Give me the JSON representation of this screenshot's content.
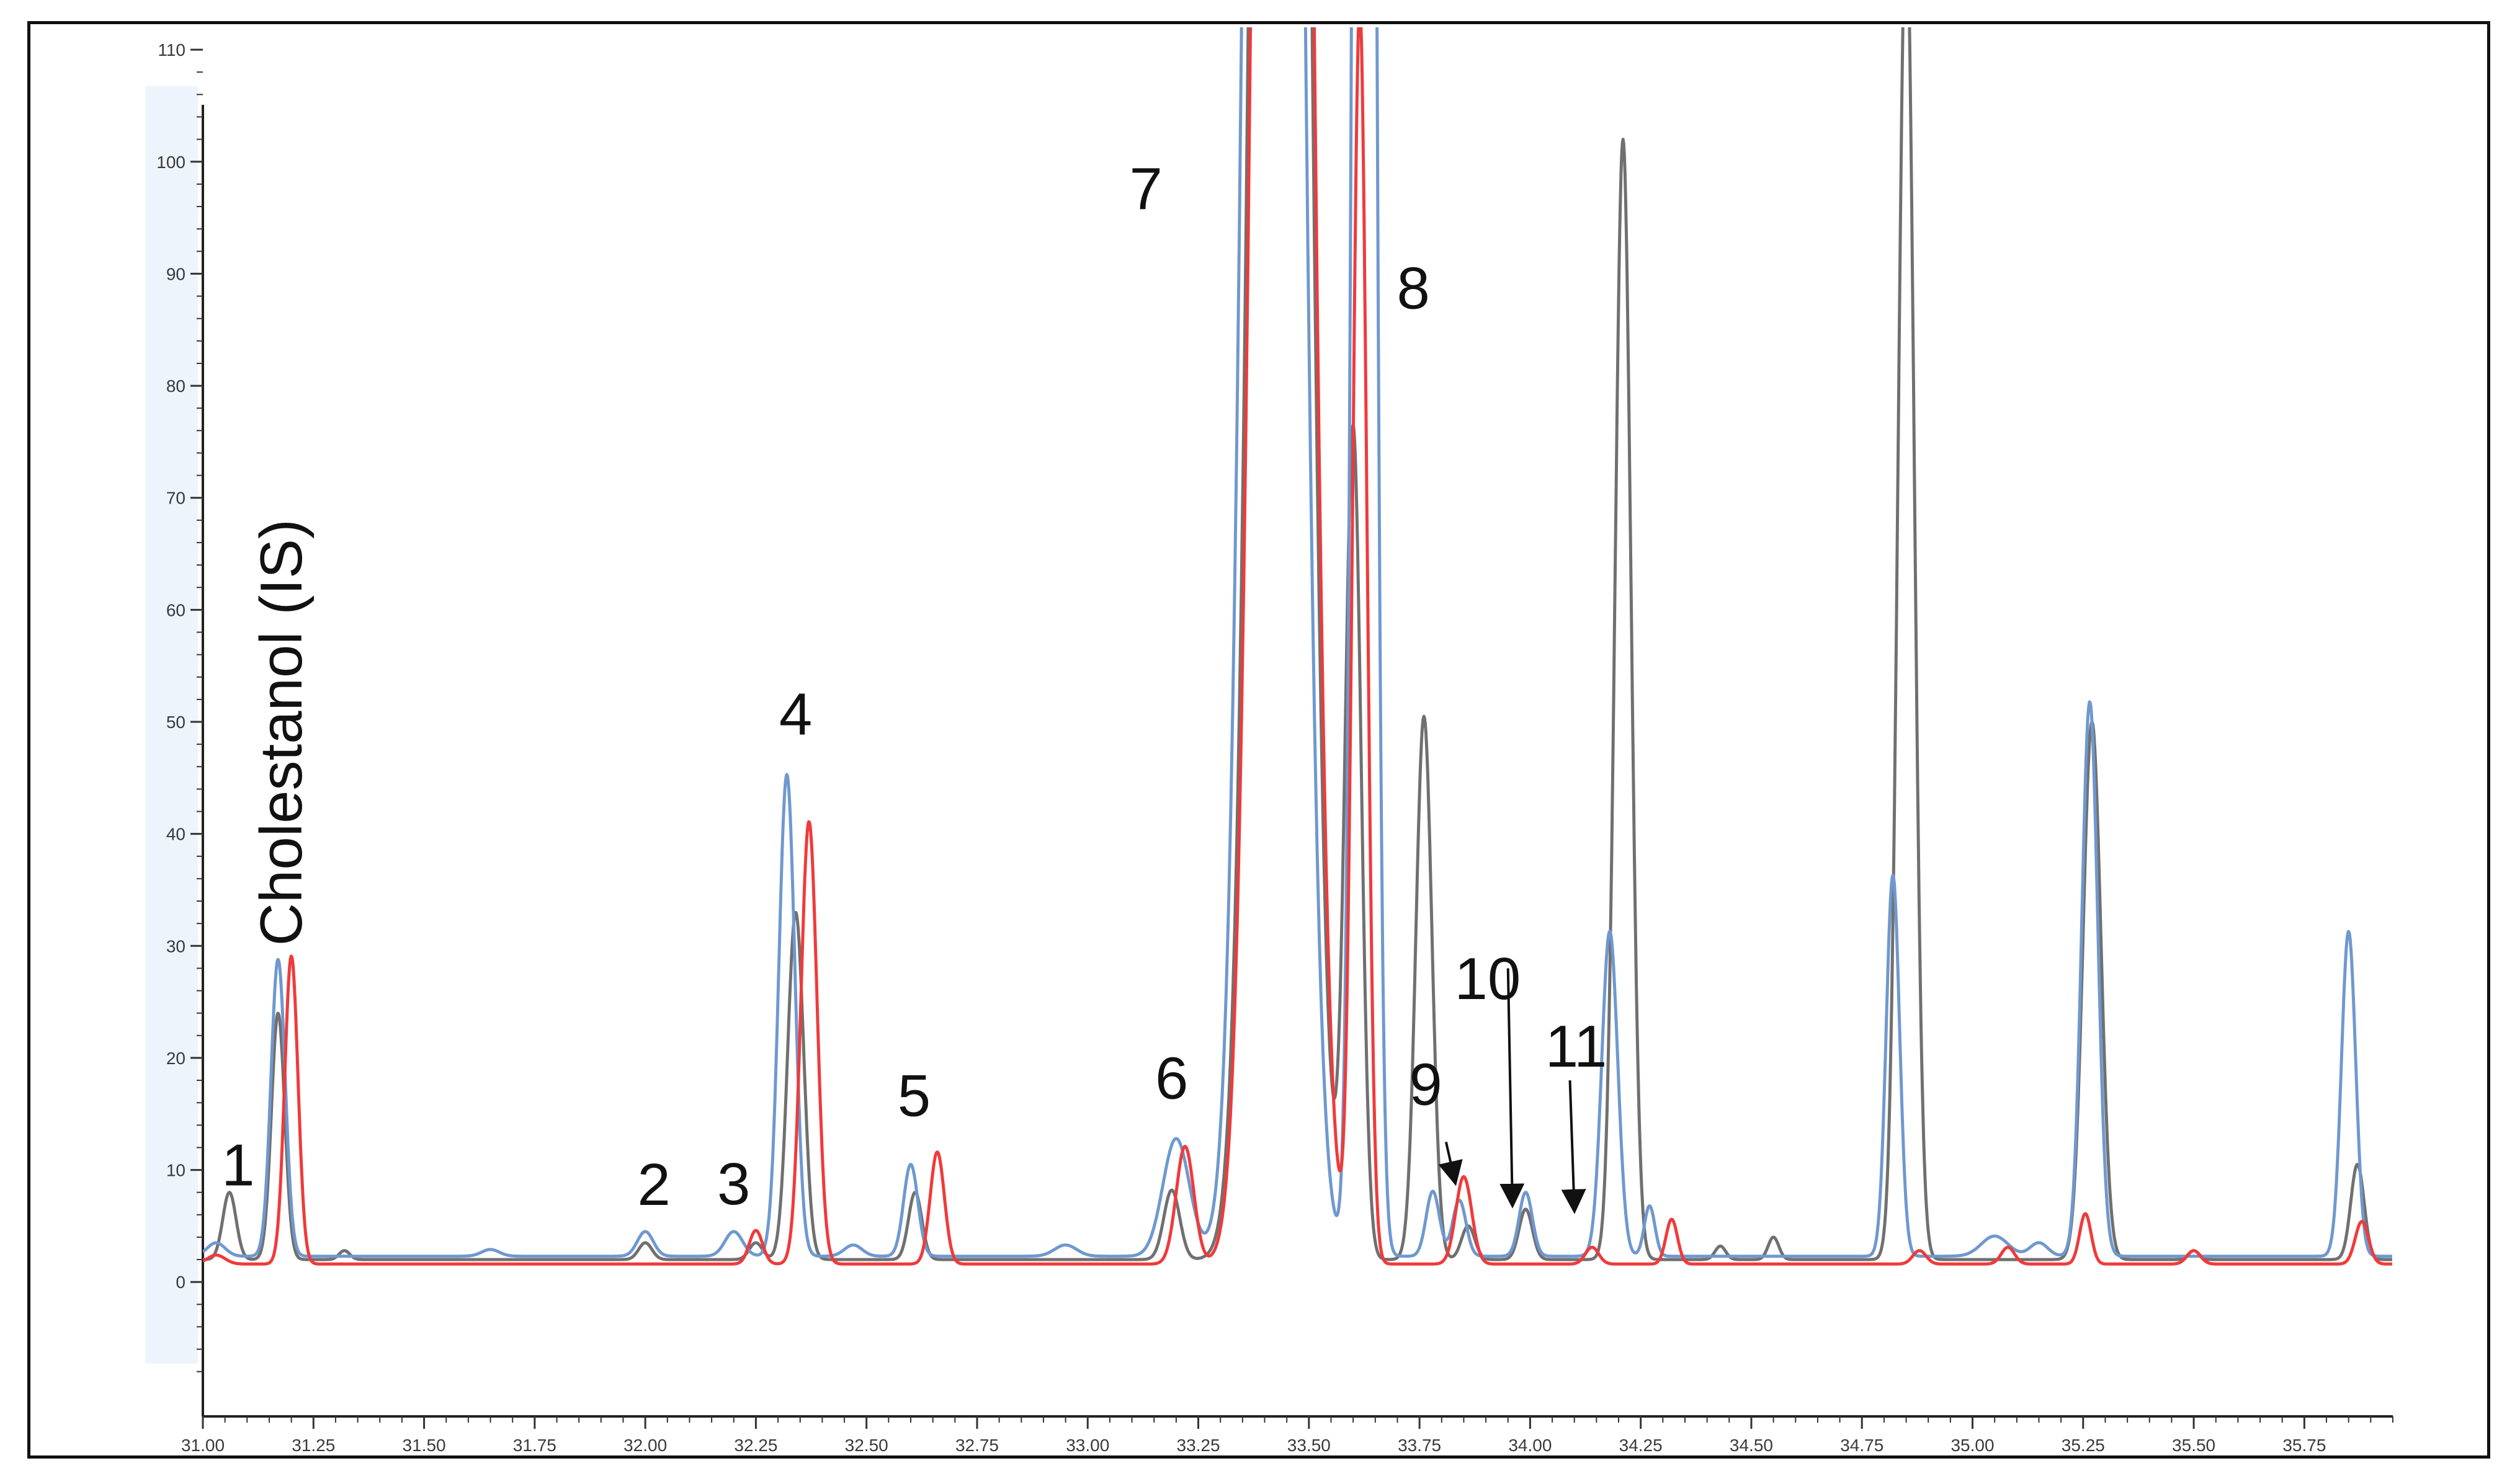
{
  "chart_data": {
    "type": "line",
    "title": "",
    "xlabel": "",
    "ylabel": "",
    "xlim": [
      31.0,
      35.95
    ],
    "ylim": [
      -12,
      112
    ],
    "grid": false,
    "legend": "none",
    "x_ticks": [
      31.0,
      31.25,
      31.5,
      31.75,
      32.0,
      32.25,
      32.5,
      32.75,
      33.0,
      33.25,
      33.5,
      33.75,
      34.0,
      34.25,
      34.5,
      34.75,
      35.0,
      35.25,
      35.5,
      35.75
    ],
    "x_tick_labels": [
      "31.00",
      "31.25",
      "31.50",
      "31.75",
      "32.00",
      "32.25",
      "32.50",
      "32.75",
      "33.00",
      "33.25",
      "33.50",
      "33.75",
      "34.00",
      "34.25",
      "34.50",
      "34.75",
      "35.00",
      "35.25",
      "35.50",
      "35.75"
    ],
    "y_ticks": [
      0,
      10,
      20,
      30,
      40,
      50,
      60,
      70,
      80,
      90,
      100,
      110
    ],
    "y_tick_labels": [
      "0",
      "10",
      "20",
      "30",
      "40",
      "50",
      "60",
      "70",
      "80",
      "90",
      "100",
      "110"
    ],
    "series": [
      {
        "color": "#707070",
        "baseline": 2.0,
        "peaks": [
          [
            31.06,
            6.0,
            0.015
          ],
          [
            31.17,
            22.0,
            0.015
          ],
          [
            31.32,
            0.8,
            0.012
          ],
          [
            32.0,
            1.5,
            0.015
          ],
          [
            32.25,
            1.5,
            0.015
          ],
          [
            32.34,
            31.0,
            0.018
          ],
          [
            32.61,
            6.0,
            0.015
          ],
          [
            33.19,
            6.2,
            0.018
          ],
          [
            33.435,
            400,
            0.045
          ],
          [
            33.6,
            74,
            0.018
          ],
          [
            33.76,
            48.5,
            0.018
          ],
          [
            33.86,
            3.0,
            0.015
          ],
          [
            33.99,
            4.5,
            0.015
          ],
          [
            34.21,
            100,
            0.018
          ],
          [
            34.43,
            1.2,
            0.012
          ],
          [
            34.55,
            2.0,
            0.012
          ],
          [
            34.85,
            120,
            0.018
          ],
          [
            35.27,
            48,
            0.02
          ],
          [
            35.5,
            0.8,
            0.012
          ],
          [
            35.87,
            8.5,
            0.015
          ]
        ]
      },
      {
        "color": "#6f98cf",
        "baseline": 2.3,
        "peaks": [
          [
            31.03,
            1.2,
            0.02
          ],
          [
            31.17,
            26.5,
            0.016
          ],
          [
            31.65,
            0.6,
            0.02
          ],
          [
            32.0,
            2.2,
            0.018
          ],
          [
            32.2,
            2.2,
            0.02
          ],
          [
            32.32,
            43.0,
            0.018
          ],
          [
            32.47,
            1.0,
            0.02
          ],
          [
            32.6,
            8.2,
            0.016
          ],
          [
            32.95,
            1.0,
            0.025
          ],
          [
            33.2,
            10.5,
            0.03
          ],
          [
            33.42,
            400,
            0.045
          ],
          [
            33.625,
            400,
            0.018
          ],
          [
            33.78,
            5.8,
            0.015
          ],
          [
            33.84,
            5.0,
            0.015
          ],
          [
            33.99,
            5.7,
            0.015
          ],
          [
            34.18,
            29.0,
            0.018
          ],
          [
            34.27,
            4.5,
            0.012
          ],
          [
            34.82,
            34.0,
            0.015
          ],
          [
            35.05,
            1.8,
            0.03
          ],
          [
            35.15,
            1.2,
            0.02
          ],
          [
            35.265,
            49.5,
            0.018
          ],
          [
            35.85,
            29.0,
            0.016
          ]
        ]
      },
      {
        "color": "#f03a3a",
        "baseline": 1.6,
        "peaks": [
          [
            31.03,
            0.8,
            0.02
          ],
          [
            31.2,
            27.5,
            0.015
          ],
          [
            32.25,
            3.0,
            0.015
          ],
          [
            32.37,
            39.5,
            0.018
          ],
          [
            32.66,
            10.0,
            0.016
          ],
          [
            33.22,
            10.5,
            0.02
          ],
          [
            33.44,
            400,
            0.045
          ],
          [
            33.615,
            112,
            0.016
          ],
          [
            33.85,
            7.8,
            0.018
          ],
          [
            34.14,
            1.5,
            0.015
          ],
          [
            34.32,
            4.0,
            0.013
          ],
          [
            34.88,
            1.2,
            0.015
          ],
          [
            35.08,
            1.5,
            0.015
          ],
          [
            35.255,
            4.5,
            0.013
          ],
          [
            35.5,
            1.2,
            0.015
          ],
          [
            35.88,
            3.8,
            0.015
          ]
        ]
      }
    ],
    "annotations": [
      {
        "text": "1",
        "x": 31.06,
        "y": 7.5
      },
      {
        "text": "Cholestanol (IS)",
        "x": 31.17,
        "y": 30
      },
      {
        "text": "2",
        "x": 32.0,
        "y": 4.0
      },
      {
        "text": "3",
        "x": 32.2,
        "y": 4.5
      },
      {
        "text": "4",
        "x": 32.34,
        "y": 45
      },
      {
        "text": "5",
        "x": 32.63,
        "y": 11.5
      },
      {
        "text": "6",
        "x": 33.19,
        "y": 12.5
      },
      {
        "text": "7",
        "x": 33.3,
        "y": 98
      },
      {
        "text": "8",
        "x": 33.68,
        "y": 88
      },
      {
        "text": "9",
        "x": 33.82,
        "y": 7.5
      },
      {
        "text": "10",
        "x": 33.96,
        "y": 7.0
      },
      {
        "text": "11",
        "x": 34.09,
        "y": 6.5
      }
    ]
  }
}
